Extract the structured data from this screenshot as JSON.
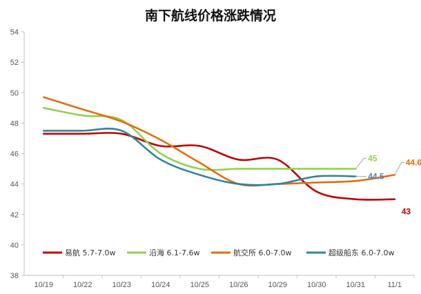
{
  "chart_data": {
    "type": "line",
    "title": "南下航线价格涨跌情况",
    "xlabel": "",
    "ylabel": "",
    "ylim": [
      38,
      54
    ],
    "yticks": [
      38,
      40,
      42,
      44,
      46,
      48,
      50,
      52,
      54
    ],
    "categories": [
      "10/19",
      "10/22",
      "10/23",
      "10/24",
      "10/25",
      "10/26",
      "10/29",
      "10/30",
      "10/31",
      "11/1"
    ],
    "grid": false,
    "legend_position": "bottom-inside",
    "series": [
      {
        "name": "易航 5.7-7.0w",
        "color": "#c00000",
        "values": [
          47.3,
          47.3,
          47.3,
          46.5,
          46.5,
          45.6,
          45.6,
          43.5,
          43.0,
          43.0
        ],
        "end_label": "43",
        "end_label_color": "#c00000"
      },
      {
        "name": "沿海 6.1-7.6w",
        "color": "#92d050",
        "values": [
          49.0,
          48.5,
          48.2,
          46.0,
          45.0,
          45.0,
          45.0,
          45.0,
          45.0,
          null
        ],
        "end_label": "45",
        "end_label_color": "#92d050"
      },
      {
        "name": "航交所 6.0-7.0w",
        "color": "#e46c0a",
        "values": [
          49.7,
          48.9,
          48.1,
          46.9,
          45.4,
          44.0,
          44.0,
          44.1,
          44.2,
          44.6
        ],
        "end_label": "44.6",
        "end_label_color": "#e46c0a"
      },
      {
        "name": "超级船东 6.0-7.0w",
        "color": "#31849b",
        "values": [
          47.5,
          47.5,
          47.5,
          45.6,
          44.6,
          44.0,
          44.0,
          44.5,
          44.5,
          null
        ],
        "end_label": "44.5",
        "end_label_color": "#4f81bd"
      }
    ]
  }
}
